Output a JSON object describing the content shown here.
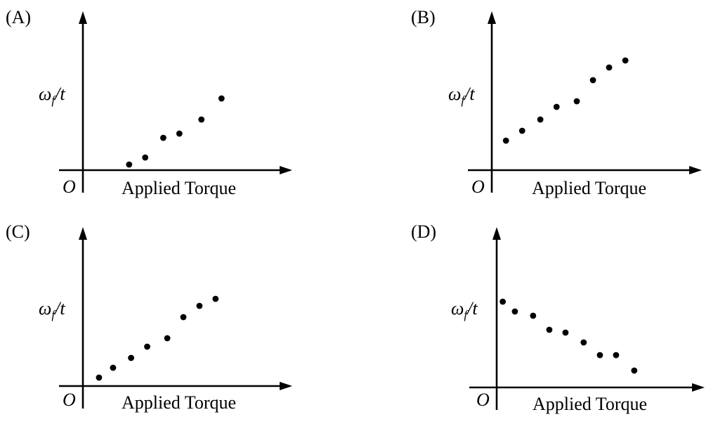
{
  "chart_data": [
    {
      "panel": "(A)",
      "type": "scatter",
      "xlabel": "Applied Torque",
      "ylabel_main": "ω",
      "ylabel_sub": "f",
      "ylabel_tail": "/t",
      "origin_label": "O",
      "xlim": [
        0,
        10
      ],
      "ylim": [
        0,
        10
      ],
      "points": [
        {
          "x": 2.3,
          "y": 0.4
        },
        {
          "x": 3.1,
          "y": 0.9
        },
        {
          "x": 4.0,
          "y": 2.3
        },
        {
          "x": 4.8,
          "y": 2.6
        },
        {
          "x": 5.9,
          "y": 3.6
        },
        {
          "x": 6.9,
          "y": 5.1
        }
      ]
    },
    {
      "panel": "(B)",
      "type": "scatter",
      "xlabel": "Applied Torque",
      "ylabel_main": "ω",
      "ylabel_sub": "f",
      "ylabel_tail": "/t",
      "origin_label": "O",
      "xlim": [
        0,
        10
      ],
      "ylim": [
        0,
        10
      ],
      "points": [
        {
          "x": 0.7,
          "y": 2.1
        },
        {
          "x": 1.5,
          "y": 2.8
        },
        {
          "x": 2.4,
          "y": 3.6
        },
        {
          "x": 3.2,
          "y": 4.5
        },
        {
          "x": 4.2,
          "y": 4.9
        },
        {
          "x": 5.0,
          "y": 6.4
        },
        {
          "x": 5.8,
          "y": 7.3
        },
        {
          "x": 6.6,
          "y": 7.8
        }
      ]
    },
    {
      "panel": "(C)",
      "type": "scatter",
      "xlabel": "Applied Torque",
      "ylabel_main": "ω",
      "ylabel_sub": "f",
      "ylabel_tail": "/t",
      "origin_label": "O",
      "xlim": [
        0,
        10
      ],
      "ylim": [
        0,
        10
      ],
      "points": [
        {
          "x": 0.8,
          "y": 0.6
        },
        {
          "x": 1.5,
          "y": 1.3
        },
        {
          "x": 2.4,
          "y": 2.0
        },
        {
          "x": 3.2,
          "y": 2.8
        },
        {
          "x": 4.2,
          "y": 3.4
        },
        {
          "x": 5.0,
          "y": 4.9
        },
        {
          "x": 5.8,
          "y": 5.7
        },
        {
          "x": 6.6,
          "y": 6.2
        }
      ]
    },
    {
      "panel": "(D)",
      "type": "scatter",
      "xlabel": "Applied Torque",
      "ylabel_main": "ω",
      "ylabel_sub": "f",
      "ylabel_tail": "/t",
      "origin_label": "O",
      "xlim": [
        0,
        10
      ],
      "ylim": [
        0,
        10
      ],
      "points": [
        {
          "x": 0.3,
          "y": 6.1
        },
        {
          "x": 0.9,
          "y": 5.4
        },
        {
          "x": 1.8,
          "y": 5.1
        },
        {
          "x": 2.6,
          "y": 4.1
        },
        {
          "x": 3.4,
          "y": 3.9
        },
        {
          "x": 4.3,
          "y": 3.2
        },
        {
          "x": 5.1,
          "y": 2.3
        },
        {
          "x": 5.9,
          "y": 2.3
        },
        {
          "x": 6.8,
          "y": 1.2
        }
      ]
    }
  ]
}
